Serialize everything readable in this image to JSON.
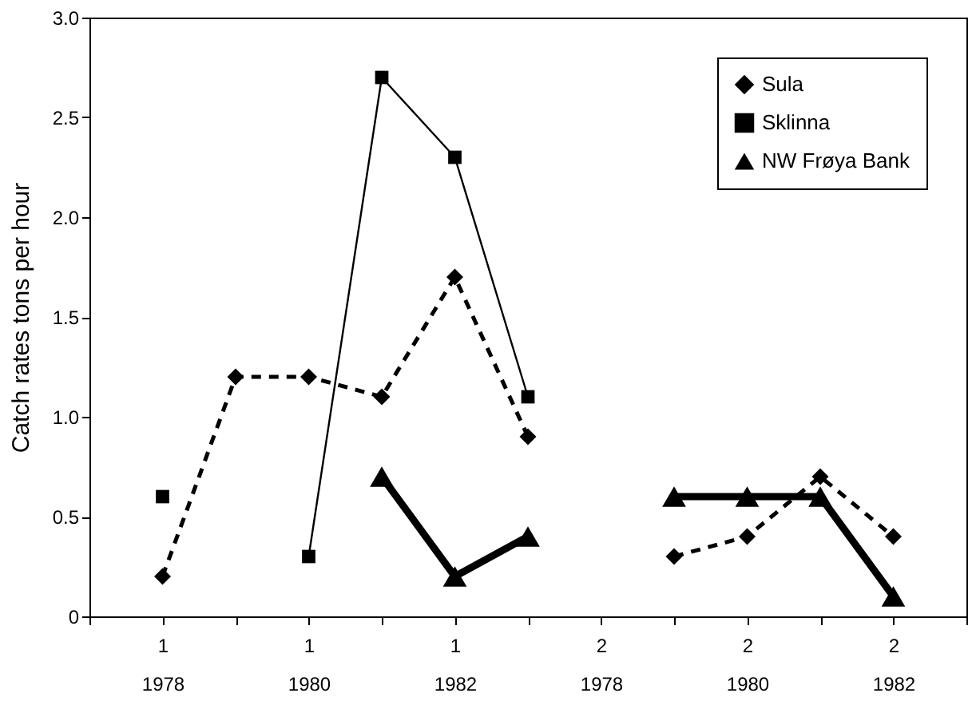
{
  "chart_data": {
    "type": "line",
    "ylabel": "Catch rates tons per hour",
    "categories": [
      null,
      "1\n1978",
      null,
      "1\n1980",
      null,
      "1\n1982",
      null,
      "2\n1978",
      null,
      "2\n1980",
      null,
      "2\n1982",
      null
    ],
    "series": [
      {
        "name": "Sula",
        "color": "#000000",
        "marker": "diamond",
        "line_style": "dashed",
        "values": [
          null,
          0.2,
          1.2,
          1.2,
          1.1,
          1.7,
          0.9,
          null,
          0.3,
          0.4,
          0.7,
          0.4,
          null
        ]
      },
      {
        "name": "Sklinna",
        "color": "#000000",
        "marker": "square",
        "line_style": "solid",
        "values": [
          null,
          0.6,
          null,
          0.3,
          2.7,
          2.3,
          1.1,
          null,
          null,
          null,
          null,
          null,
          null
        ]
      },
      {
        "name": "NW Frøya Bank",
        "color": "#000000",
        "marker": "triangle",
        "line_style": "solid",
        "values": [
          null,
          null,
          null,
          null,
          0.7,
          0.2,
          0.4,
          null,
          0.6,
          0.6,
          0.6,
          0.1,
          null
        ]
      }
    ],
    "ylim": [
      0,
      3.0
    ],
    "yticks": [
      0,
      {
        "value": 0.5,
        "label": "0.5"
      },
      {
        "value": 1,
        "label": "1.0"
      },
      {
        "value": 1.5,
        "label": "1.5"
      },
      {
        "value": 2,
        "label": "2.0"
      },
      {
        "value": 2.5,
        "label": "2.5"
      },
      {
        "value": 3,
        "label": "3.0"
      }
    ],
    "grid": false,
    "legend": "top right"
  }
}
